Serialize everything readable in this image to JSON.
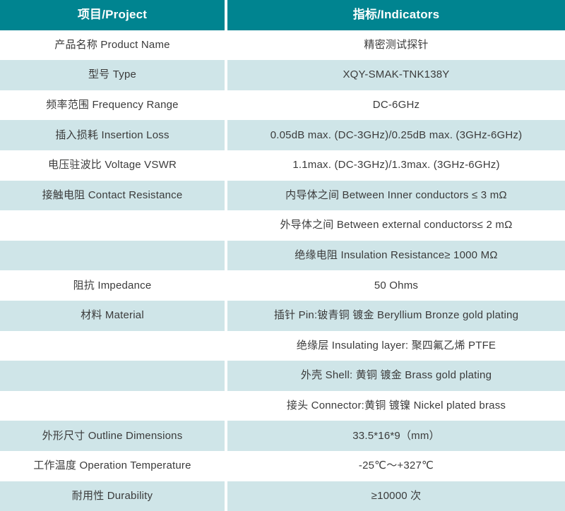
{
  "table": {
    "header": {
      "col1": "项目/Project",
      "col2": "指标/Indicators"
    },
    "rows": [
      {
        "project": "产品名称 Product Name",
        "indicator": "精密测试探针"
      },
      {
        "project": "型号 Type",
        "indicator": "XQY-SMAK-TNK138Y"
      },
      {
        "project": "频率范围 Frequency Range",
        "indicator": "DC-6GHz"
      },
      {
        "project": "插入损耗 Insertion Loss",
        "indicator": "0.05dB max. (DC-3GHz)/0.25dB max. (3GHz-6GHz)"
      },
      {
        "project": "电压驻波比 Voltage VSWR",
        "indicator": "1.1max. (DC-3GHz)/1.3max. (3GHz-6GHz)"
      },
      {
        "project": "接触电阻 Contact Resistance",
        "indicator": "内导体之间 Between Inner conductors ≤ 3 mΩ"
      },
      {
        "project": "",
        "indicator": "外导体之间 Between external conductors≤ 2 mΩ"
      },
      {
        "project": "",
        "indicator": "绝缘电阻 Insulation Resistance≥ 1000 MΩ"
      },
      {
        "project": "阻抗 Impedance",
        "indicator": "50 Ohms"
      },
      {
        "project": "材料 Material",
        "indicator": "插针 Pin:铍青铜 镀金 Beryllium Bronze gold plating"
      },
      {
        "project": "",
        "indicator": "绝缘层 Insulating layer: 聚四氟乙烯 PTFE"
      },
      {
        "project": "",
        "indicator": "外壳 Shell: 黄铜 镀金 Brass gold plating"
      },
      {
        "project": "",
        "indicator": "接头 Connector:黄铜 镀镍 Nickel plated brass"
      },
      {
        "project": "外形尺寸 Outline Dimensions",
        "indicator": "33.5*16*9（mm）"
      },
      {
        "project": "工作温度 Operation Temperature",
        "indicator": "-25℃～+327℃"
      },
      {
        "project": "耐用性 Durability",
        "indicator": "≥10000 次"
      }
    ],
    "colors": {
      "header_bg": "#008490",
      "header_text": "#ffffff",
      "row_alt_bg": "#cfe5e8",
      "row_bg": "#ffffff",
      "text": "#3b3b3b"
    }
  }
}
